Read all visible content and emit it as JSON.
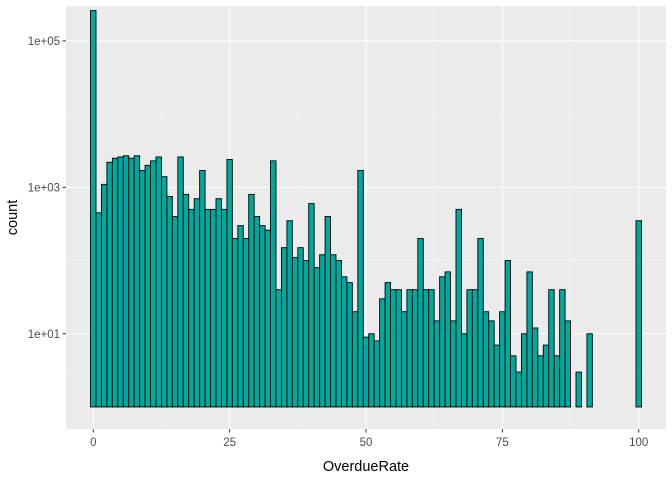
{
  "chart_data": {
    "type": "bar",
    "subtype": "histogram",
    "title": "",
    "xlabel": "OverdueRate",
    "ylabel": "count",
    "x_scale": "linear",
    "y_scale": "log10",
    "xlim": [
      -5,
      105
    ],
    "ylim": [
      0.5,
      300000
    ],
    "x_ticks": [
      0,
      25,
      50,
      75,
      100
    ],
    "x_tick_labels": [
      "0",
      "25",
      "50",
      "75",
      "100"
    ],
    "y_ticks": [
      10,
      1000,
      100000
    ],
    "y_tick_labels": [
      "1e+01",
      "1e+03",
      "1e+05"
    ],
    "bin_width": 1,
    "bins_start": -0.5,
    "values": [
      260000,
      450,
      1100,
      2200,
      2500,
      2600,
      2700,
      2500,
      2700,
      1700,
      2000,
      2300,
      2600,
      1400,
      750,
      400,
      2600,
      800,
      500,
      700,
      1700,
      500,
      500,
      700,
      500,
      2400,
      200,
      300,
      200,
      800,
      400,
      300,
      260,
      2300,
      40,
      150,
      350,
      110,
      150,
      100,
      600,
      80,
      120,
      400,
      120,
      100,
      60,
      50,
      20,
      1700,
      9,
      10,
      8,
      30,
      50,
      40,
      40,
      20,
      40,
      40,
      200,
      40,
      40,
      15,
      60,
      70,
      15,
      500,
      10,
      40,
      40,
      200,
      20,
      15,
      7,
      20,
      100,
      5,
      3,
      10,
      70,
      12,
      5,
      7,
      40,
      5,
      40,
      15,
      1,
      3,
      1,
      10,
      1,
      1,
      1,
      0,
      0,
      0,
      0,
      0,
      350
    ],
    "colors": {
      "bar_fill": "#00a99d",
      "bar_stroke": "#000000",
      "panel_background": "#ebebeb",
      "grid_major": "#ffffff",
      "grid_minor": "#f5f5f5"
    },
    "grid": true,
    "legend": "none"
  }
}
